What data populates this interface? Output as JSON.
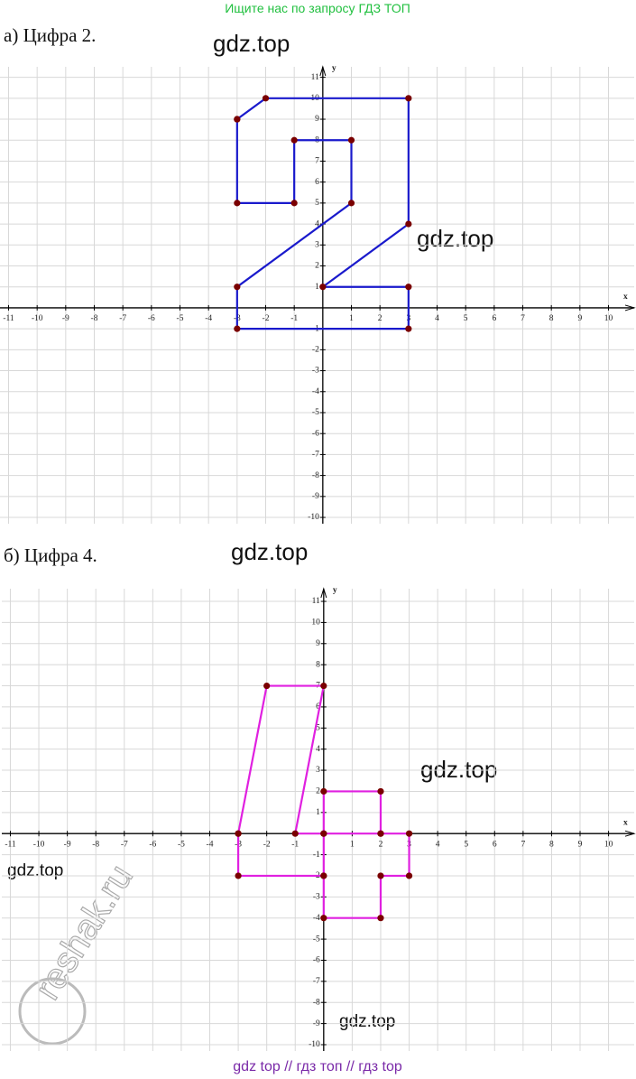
{
  "header": "Ищите нас по запросу ГДЗ ТОП",
  "chart_data": [
    {
      "type": "line",
      "title": "а) Цифра 2.",
      "xlabel": "x",
      "ylabel": "y",
      "xlim": [
        -11.3,
        10.9
      ],
      "ylim": [
        -10.3,
        11.5
      ],
      "xticks": [
        -11,
        -10,
        -9,
        -8,
        -7,
        -6,
        -5,
        -4,
        -3,
        -2,
        -1,
        1,
        2,
        3,
        4,
        5,
        6,
        7,
        8,
        9,
        10
      ],
      "yticks": [
        11,
        10,
        9,
        8,
        7,
        6,
        5,
        4,
        3,
        2,
        1,
        -1,
        -2,
        -3,
        -4,
        -5,
        -6,
        -7,
        -8,
        -9,
        -10
      ],
      "grid": true,
      "color": "#1a1acc",
      "marker_color": "#7a0000",
      "x": [
        -3,
        -2,
        3,
        3,
        0,
        3,
        3,
        -3,
        -3,
        1,
        1,
        -1,
        -1,
        -3,
        -3
      ],
      "y": [
        9,
        10,
        10,
        4,
        1,
        1,
        -1,
        -1,
        1,
        5,
        8,
        8,
        5,
        5,
        9
      ]
    },
    {
      "type": "line",
      "title": "б) Цифра 4.",
      "xlabel": "x",
      "ylabel": "y",
      "xlim": [
        -11.3,
        10.9
      ],
      "ylim": [
        -10.3,
        11.6
      ],
      "xticks": [
        -11,
        -10,
        -9,
        -8,
        -7,
        -6,
        -5,
        -4,
        -3,
        -2,
        -1,
        1,
        2,
        3,
        4,
        5,
        6,
        7,
        8,
        9,
        10
      ],
      "yticks": [
        11,
        10,
        9,
        8,
        7,
        6,
        5,
        4,
        3,
        2,
        1,
        -1,
        -2,
        -3,
        -4,
        -5,
        -6,
        -7,
        -8,
        -9,
        -10
      ],
      "grid": true,
      "color": "#e020e0",
      "marker_color": "#7a0000",
      "x": [
        -3,
        -2,
        0,
        -1,
        0,
        0,
        2,
        2,
        0,
        0,
        -3,
        -3,
        null,
        2,
        3,
        3,
        2,
        2,
        0,
        0
      ],
      "y": [
        0,
        7,
        7,
        0,
        0,
        2,
        2,
        0,
        0,
        -2,
        -2,
        0,
        null,
        0,
        0,
        -2,
        -2,
        -4,
        -4,
        -2
      ]
    }
  ],
  "watermarks": [
    "gdz.top",
    "gdz.top",
    "gdz.top",
    "gdz.top",
    "gdz.top",
    "gdz.top"
  ],
  "reshak": "reshak.ru",
  "footer": "gdz top  //  гдз топ  //  гдз top"
}
